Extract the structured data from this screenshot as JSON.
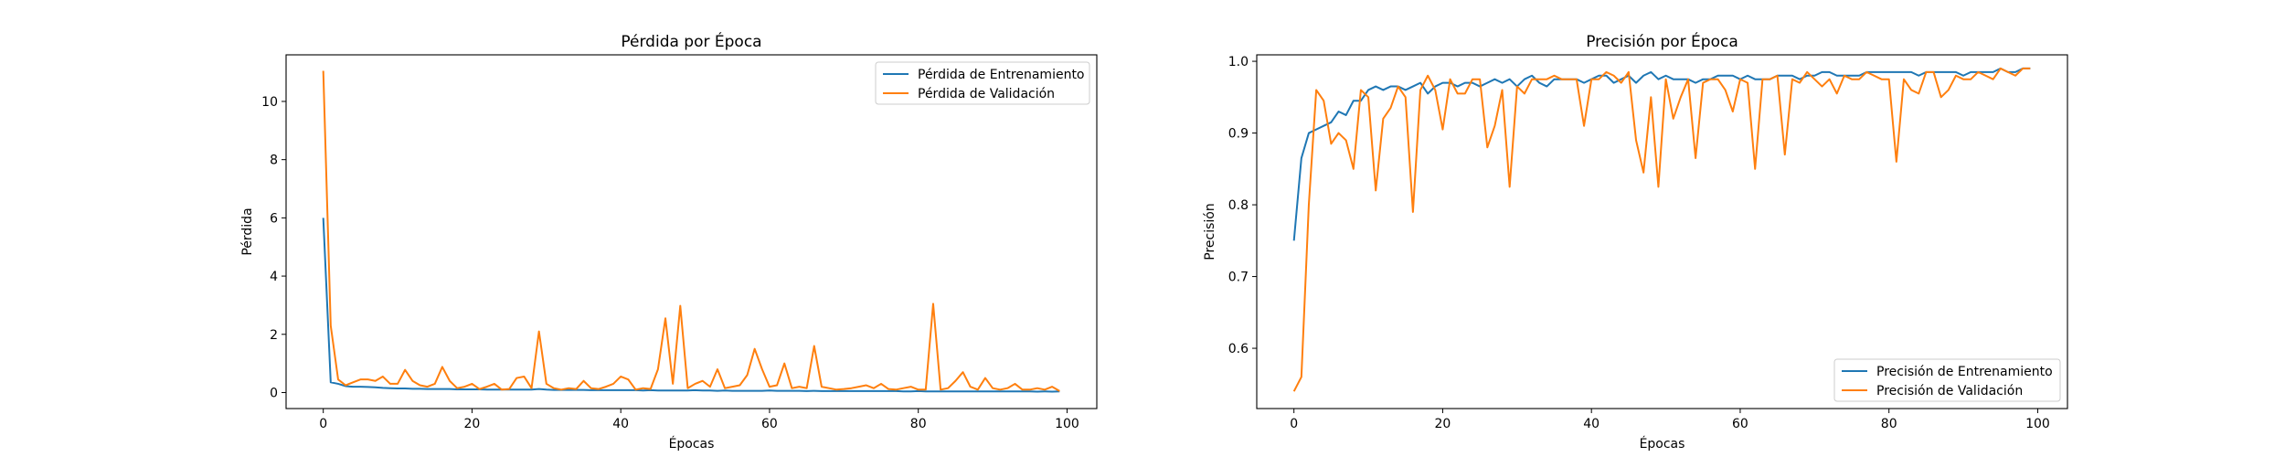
{
  "colors": {
    "train": "#1f77b4",
    "val": "#ff7f0e"
  },
  "chart_data": [
    {
      "type": "line",
      "title": "Pérdida por Época",
      "xlabel": "Épocas",
      "ylabel": "Pérdida",
      "xlim": [
        -5,
        104
      ],
      "ylim": [
        -0.55,
        11.6
      ],
      "xticks": [
        0,
        20,
        40,
        60,
        80,
        100
      ],
      "yticks": [
        0,
        2,
        4,
        6,
        8,
        10
      ],
      "legend": "top-right",
      "grid": false,
      "x": [
        0,
        1,
        2,
        3,
        4,
        5,
        6,
        7,
        8,
        9,
        10,
        11,
        12,
        13,
        14,
        15,
        16,
        17,
        18,
        19,
        20,
        21,
        22,
        23,
        24,
        25,
        26,
        27,
        28,
        29,
        30,
        31,
        32,
        33,
        34,
        35,
        36,
        37,
        38,
        39,
        40,
        41,
        42,
        43,
        44,
        45,
        46,
        47,
        48,
        49,
        50,
        51,
        52,
        53,
        54,
        55,
        56,
        57,
        58,
        59,
        60,
        61,
        62,
        63,
        64,
        65,
        66,
        67,
        68,
        69,
        70,
        71,
        72,
        73,
        74,
        75,
        76,
        77,
        78,
        79,
        80,
        81,
        82,
        83,
        84,
        85,
        86,
        87,
        88,
        89,
        90,
        91,
        92,
        93,
        94,
        95,
        96,
        97,
        98,
        99
      ],
      "series": [
        {
          "name": "Pérdida de Entrenamiento",
          "values": [
            6.0,
            0.35,
            0.3,
            0.22,
            0.2,
            0.2,
            0.19,
            0.18,
            0.16,
            0.15,
            0.14,
            0.14,
            0.13,
            0.13,
            0.12,
            0.12,
            0.12,
            0.12,
            0.11,
            0.11,
            0.11,
            0.11,
            0.1,
            0.1,
            0.1,
            0.1,
            0.1,
            0.1,
            0.1,
            0.12,
            0.1,
            0.09,
            0.09,
            0.09,
            0.09,
            0.09,
            0.08,
            0.08,
            0.08,
            0.08,
            0.08,
            0.08,
            0.08,
            0.07,
            0.08,
            0.07,
            0.07,
            0.07,
            0.07,
            0.07,
            0.08,
            0.07,
            0.07,
            0.06,
            0.07,
            0.06,
            0.06,
            0.06,
            0.06,
            0.06,
            0.07,
            0.06,
            0.06,
            0.06,
            0.06,
            0.05,
            0.06,
            0.05,
            0.05,
            0.05,
            0.05,
            0.05,
            0.05,
            0.05,
            0.05,
            0.05,
            0.05,
            0.05,
            0.04,
            0.04,
            0.05,
            0.04,
            0.04,
            0.04,
            0.04,
            0.04,
            0.04,
            0.04,
            0.04,
            0.04,
            0.04,
            0.04,
            0.04,
            0.04,
            0.04,
            0.04,
            0.03,
            0.04,
            0.03,
            0.04
          ]
        },
        {
          "name": "Pérdida de Validación",
          "values": [
            11.05,
            2.3,
            0.45,
            0.25,
            0.35,
            0.45,
            0.45,
            0.4,
            0.55,
            0.3,
            0.3,
            0.78,
            0.4,
            0.25,
            0.2,
            0.3,
            0.88,
            0.4,
            0.15,
            0.2,
            0.3,
            0.12,
            0.2,
            0.3,
            0.1,
            0.12,
            0.5,
            0.55,
            0.15,
            2.1,
            0.3,
            0.15,
            0.1,
            0.15,
            0.12,
            0.4,
            0.15,
            0.12,
            0.2,
            0.3,
            0.55,
            0.45,
            0.1,
            0.15,
            0.12,
            0.8,
            2.55,
            0.3,
            2.98,
            0.15,
            0.3,
            0.4,
            0.2,
            0.8,
            0.15,
            0.2,
            0.25,
            0.6,
            1.5,
            0.8,
            0.2,
            0.25,
            1.0,
            0.15,
            0.2,
            0.15,
            1.6,
            0.2,
            0.15,
            0.1,
            0.12,
            0.15,
            0.2,
            0.25,
            0.15,
            0.3,
            0.12,
            0.1,
            0.15,
            0.2,
            0.1,
            0.1,
            3.05,
            0.1,
            0.15,
            0.4,
            0.7,
            0.2,
            0.1,
            0.5,
            0.15,
            0.1,
            0.15,
            0.3,
            0.1,
            0.1,
            0.15,
            0.1,
            0.2,
            0.05
          ]
        }
      ]
    },
    {
      "type": "line",
      "title": "Precisión por Época",
      "xlabel": "Épocas",
      "ylabel": "Precisión",
      "xlim": [
        -5,
        104
      ],
      "ylim": [
        0.516,
        1.009
      ],
      "xticks": [
        0,
        20,
        40,
        60,
        80,
        100
      ],
      "yticks": [
        0.6,
        0.7,
        0.8,
        0.9,
        1.0
      ],
      "legend": "bottom-right",
      "grid": false,
      "x": [
        0,
        1,
        2,
        3,
        4,
        5,
        6,
        7,
        8,
        9,
        10,
        11,
        12,
        13,
        14,
        15,
        16,
        17,
        18,
        19,
        20,
        21,
        22,
        23,
        24,
        25,
        26,
        27,
        28,
        29,
        30,
        31,
        32,
        33,
        34,
        35,
        36,
        37,
        38,
        39,
        40,
        41,
        42,
        43,
        44,
        45,
        46,
        47,
        48,
        49,
        50,
        51,
        52,
        53,
        54,
        55,
        56,
        57,
        58,
        59,
        60,
        61,
        62,
        63,
        64,
        65,
        66,
        67,
        68,
        69,
        70,
        71,
        72,
        73,
        74,
        75,
        76,
        77,
        78,
        79,
        80,
        81,
        82,
        83,
        84,
        85,
        86,
        87,
        88,
        89,
        90,
        91,
        92,
        93,
        94,
        95,
        96,
        97,
        98,
        99
      ],
      "series": [
        {
          "name": "Precisión de Entrenamiento",
          "values": [
            0.75,
            0.865,
            0.9,
            0.905,
            0.91,
            0.915,
            0.93,
            0.925,
            0.945,
            0.945,
            0.96,
            0.965,
            0.96,
            0.965,
            0.965,
            0.96,
            0.965,
            0.97,
            0.955,
            0.965,
            0.97,
            0.97,
            0.965,
            0.97,
            0.97,
            0.965,
            0.97,
            0.975,
            0.97,
            0.975,
            0.965,
            0.975,
            0.98,
            0.97,
            0.965,
            0.975,
            0.975,
            0.975,
            0.975,
            0.97,
            0.975,
            0.98,
            0.98,
            0.97,
            0.975,
            0.98,
            0.97,
            0.98,
            0.985,
            0.975,
            0.98,
            0.975,
            0.975,
            0.975,
            0.97,
            0.975,
            0.975,
            0.98,
            0.98,
            0.98,
            0.975,
            0.98,
            0.975,
            0.975,
            0.975,
            0.98,
            0.98,
            0.98,
            0.975,
            0.98,
            0.98,
            0.985,
            0.985,
            0.98,
            0.98,
            0.98,
            0.98,
            0.985,
            0.985,
            0.985,
            0.985,
            0.985,
            0.985,
            0.985,
            0.98,
            0.985,
            0.985,
            0.985,
            0.985,
            0.985,
            0.98,
            0.985,
            0.985,
            0.985,
            0.985,
            0.99,
            0.985,
            0.985,
            0.99,
            0.99
          ]
        },
        {
          "name": "Precisión de Validación",
          "values": [
            0.54,
            0.56,
            0.8,
            0.96,
            0.945,
            0.885,
            0.9,
            0.89,
            0.85,
            0.96,
            0.95,
            0.82,
            0.92,
            0.935,
            0.965,
            0.95,
            0.79,
            0.96,
            0.98,
            0.96,
            0.905,
            0.975,
            0.955,
            0.955,
            0.975,
            0.975,
            0.88,
            0.91,
            0.96,
            0.825,
            0.965,
            0.955,
            0.975,
            0.975,
            0.975,
            0.98,
            0.975,
            0.975,
            0.975,
            0.91,
            0.975,
            0.975,
            0.985,
            0.98,
            0.97,
            0.985,
            0.89,
            0.845,
            0.95,
            0.825,
            0.975,
            0.92,
            0.95,
            0.975,
            0.865,
            0.97,
            0.975,
            0.975,
            0.96,
            0.93,
            0.975,
            0.97,
            0.85,
            0.975,
            0.975,
            0.98,
            0.87,
            0.975,
            0.97,
            0.985,
            0.975,
            0.965,
            0.975,
            0.955,
            0.98,
            0.975,
            0.975,
            0.985,
            0.98,
            0.975,
            0.975,
            0.86,
            0.975,
            0.96,
            0.955,
            0.985,
            0.985,
            0.95,
            0.96,
            0.98,
            0.975,
            0.975,
            0.985,
            0.98,
            0.975,
            0.99,
            0.985,
            0.98,
            0.99,
            0.99
          ]
        }
      ]
    }
  ]
}
